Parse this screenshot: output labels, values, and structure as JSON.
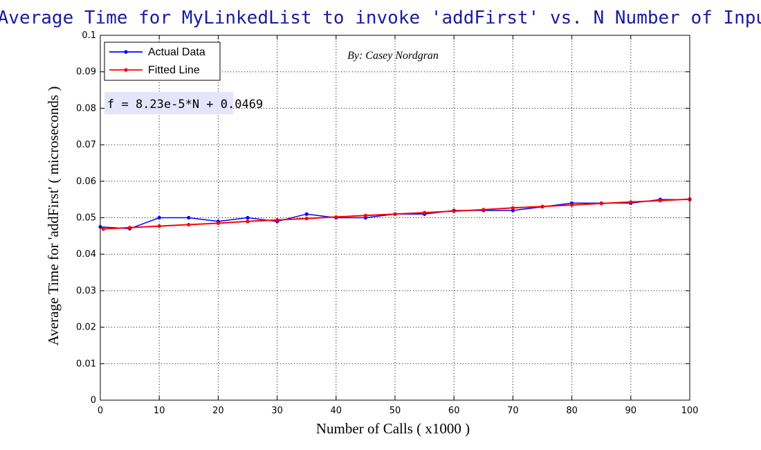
{
  "chart_data": {
    "type": "line",
    "title": "Average Time for MyLinkedList to invoke 'addFirst'  vs.  N Number of Inputs",
    "xlabel": "Number of Calls ( x1000 )",
    "ylabel": "Average Time for 'addFirst' ( microseconds )",
    "xlim": [
      0,
      100
    ],
    "ylim": [
      0,
      0.1
    ],
    "xticks": [
      "0",
      "10",
      "20",
      "30",
      "40",
      "50",
      "60",
      "70",
      "80",
      "90",
      "100"
    ],
    "yticks": [
      "0",
      "0.01",
      "0.02",
      "0.03",
      "0.04",
      "0.05",
      "0.06",
      "0.07",
      "0.08",
      "0.09",
      "0.1"
    ],
    "grid": true,
    "legend_position": "top-left",
    "annotations": {
      "author": "By: Casey Nordgran",
      "equation": "f = 8.23e-5*N + 0.0469"
    },
    "series": [
      {
        "name": "Actual Data",
        "color": "#0000ff",
        "x": [
          0,
          5,
          10,
          15,
          20,
          25,
          30,
          35,
          40,
          45,
          50,
          55,
          60,
          65,
          70,
          75,
          80,
          85,
          90,
          95,
          100
        ],
        "y": [
          0.0475,
          0.047,
          0.05,
          0.05,
          0.049,
          0.05,
          0.049,
          0.051,
          0.05,
          0.05,
          0.051,
          0.051,
          0.052,
          0.052,
          0.052,
          0.053,
          0.054,
          0.054,
          0.054,
          0.055,
          0.055
        ]
      },
      {
        "name": "Fitted Line",
        "color": "#ff0000",
        "x": [
          0.5,
          5,
          10,
          15,
          20,
          25,
          30,
          35,
          40,
          45,
          50,
          55,
          60,
          65,
          70,
          75,
          80,
          85,
          90,
          95,
          100
        ],
        "y": [
          0.0469,
          0.0473,
          0.0477,
          0.0481,
          0.0485,
          0.049,
          0.0494,
          0.0498,
          0.0502,
          0.0506,
          0.051,
          0.0514,
          0.0518,
          0.0522,
          0.0527,
          0.0531,
          0.0535,
          0.0539,
          0.0543,
          0.0547,
          0.0551
        ]
      }
    ]
  }
}
